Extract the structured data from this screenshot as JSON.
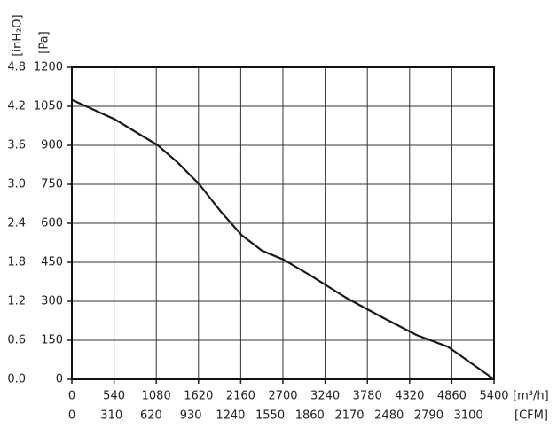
{
  "chart_data": {
    "type": "line",
    "x": [
      0,
      550,
      1100,
      1350,
      1630,
      1920,
      2170,
      2430,
      2710,
      3050,
      3500,
      3960,
      4410,
      4810,
      5400
    ],
    "series": [
      {
        "color": "#1a1a1a",
        "values": [
          1075,
          1000,
          900,
          835,
          750,
          640,
          555,
          495,
          460,
          400,
          315,
          240,
          170,
          125,
          0
        ]
      }
    ],
    "xlim": [
      0,
      5400
    ],
    "xticks": [
      0,
      540,
      1080,
      1620,
      2160,
      2700,
      3240,
      3780,
      4320,
      4860,
      5400
    ],
    "ylim": [
      0,
      1200
    ],
    "yticks": [
      0,
      150,
      300,
      450,
      600,
      750,
      900,
      1050,
      1200
    ],
    "y2lim": [
      0,
      4.8
    ],
    "y2ticks": [
      {
        "value": 0,
        "label": "0.0"
      },
      0.6,
      1.2,
      1.8,
      2.4,
      {
        "value": 3,
        "label": "3.0"
      },
      3.6,
      4.2,
      4.8
    ],
    "x2lim": [
      0,
      3300
    ],
    "x2ticks": [
      0,
      310,
      620,
      930,
      1240,
      1550,
      1860,
      2170,
      2480,
      2790,
      3100
    ],
    "xlabel": "[m³/h]",
    "x2label": "[CFM]",
    "ylabel": "[Pa]",
    "y2label": "[inH₂O]",
    "grid": true
  }
}
